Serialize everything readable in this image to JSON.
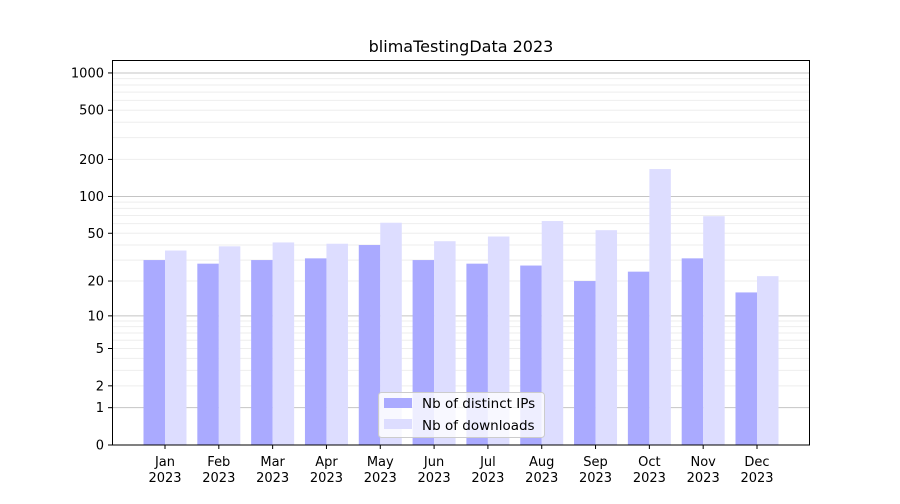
{
  "chart_data": {
    "type": "bar",
    "title": "blimaTestingData 2023",
    "xlabel": "",
    "ylabel": "",
    "yscale": "symlog",
    "ylim": [
      0,
      1200
    ],
    "yticks": [
      0,
      1,
      2,
      5,
      10,
      20,
      50,
      100,
      200,
      500,
      1000
    ],
    "grid": true,
    "legend_position": "lower-center",
    "categories": [
      "Jan\n2023",
      "Feb\n2023",
      "Mar\n2023",
      "Apr\n2023",
      "May\n2023",
      "Jun\n2023",
      "Jul\n2023",
      "Aug\n2023",
      "Sep\n2023",
      "Oct\n2023",
      "Nov\n2023",
      "Dec\n2023"
    ],
    "series": [
      {
        "name": "Nb of distinct IPs",
        "color": "#aaaaff",
        "values": [
          30,
          28,
          30,
          31,
          40,
          30,
          28,
          27,
          20,
          24,
          31,
          16
        ]
      },
      {
        "name": "Nb of downloads",
        "color": "#ddddff",
        "values": [
          36,
          39,
          42,
          41,
          61,
          43,
          47,
          63,
          53,
          167,
          69,
          22
        ]
      }
    ]
  }
}
